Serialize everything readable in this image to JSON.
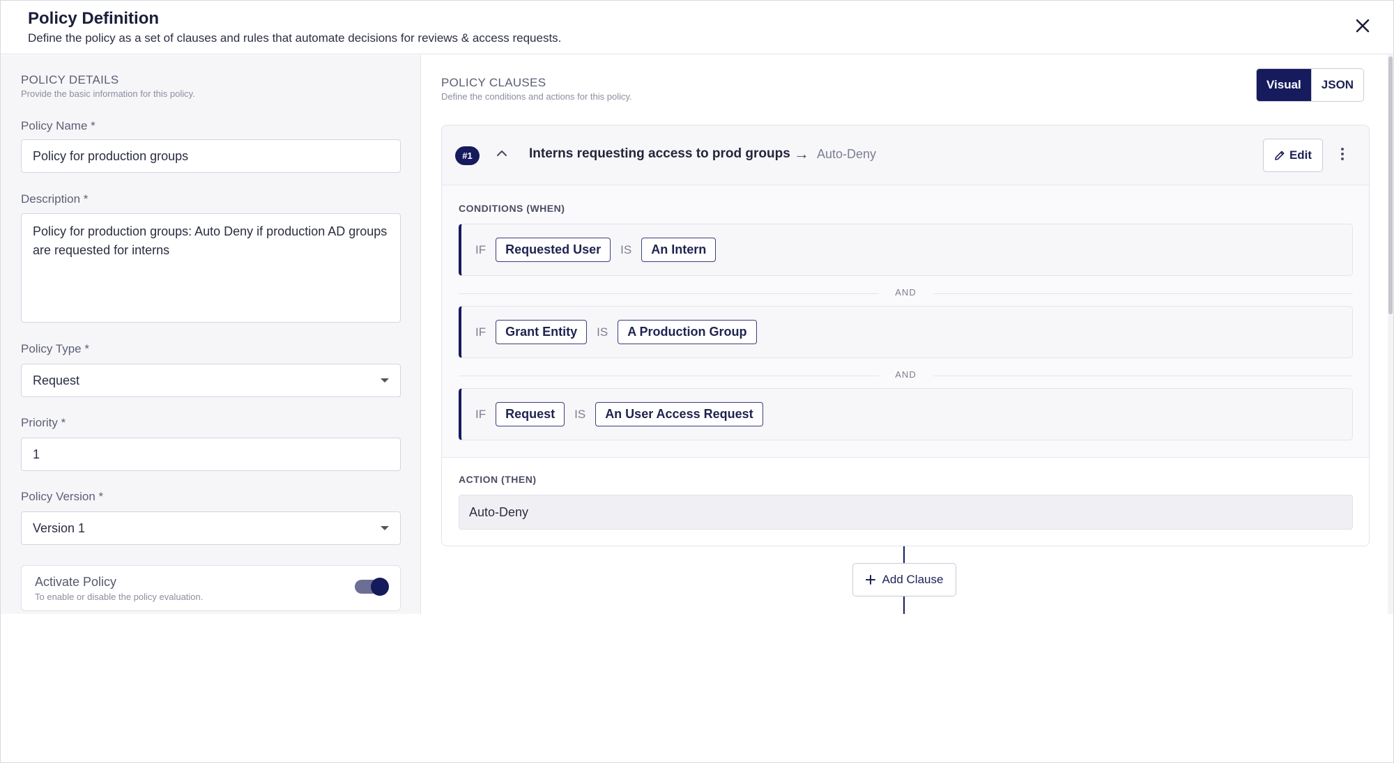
{
  "header": {
    "title": "Policy Definition",
    "subtitle": "Define the policy as a set of clauses and rules that automate decisions for reviews & access requests.",
    "close_icon": "close-icon"
  },
  "details": {
    "section_title": "POLICY DETAILS",
    "section_subtitle": "Provide the basic information for this policy.",
    "name_label": "Policy Name *",
    "name_value": "Policy for production groups",
    "description_label": "Description *",
    "description_value": "Policy for production groups: Auto Deny if production AD groups are requested for interns",
    "type_label": "Policy Type *",
    "type_value": "Request",
    "priority_label": "Priority *",
    "priority_value": "1",
    "version_label": "Policy Version *",
    "version_value": "Version 1",
    "activate_title": "Activate Policy",
    "activate_subtitle": "To enable or disable the policy evaluation.",
    "activate_on": true
  },
  "clauses": {
    "section_title": "POLICY CLAUSES",
    "section_subtitle": "Define the conditions and actions for this policy.",
    "view_tabs": [
      "Visual",
      "JSON"
    ],
    "selected_view": "Visual",
    "clause": {
      "badge": "#1",
      "title": "Interns requesting access to prod groups",
      "arrow": "→",
      "action": "Auto-Deny",
      "edit_label": "Edit",
      "conditions_label": "CONDITIONS (WHEN)",
      "conditions": [
        {
          "if": "IF",
          "subject": "Requested User",
          "op": "IS",
          "value": "An Intern"
        },
        {
          "if": "IF",
          "subject": "Grant Entity",
          "op": "IS",
          "value": "A Production Group"
        },
        {
          "if": "IF",
          "subject": "Request",
          "op": "IS",
          "value": "An User Access Request"
        }
      ],
      "joiner": "AND",
      "action_label": "ACTION (THEN)",
      "action_value": "Auto-Deny"
    },
    "add_clause_label": "Add Clause"
  },
  "colors": {
    "primary": "#161b5e",
    "panel_bg": "#f6f6f9",
    "border": "#d3d5de"
  }
}
